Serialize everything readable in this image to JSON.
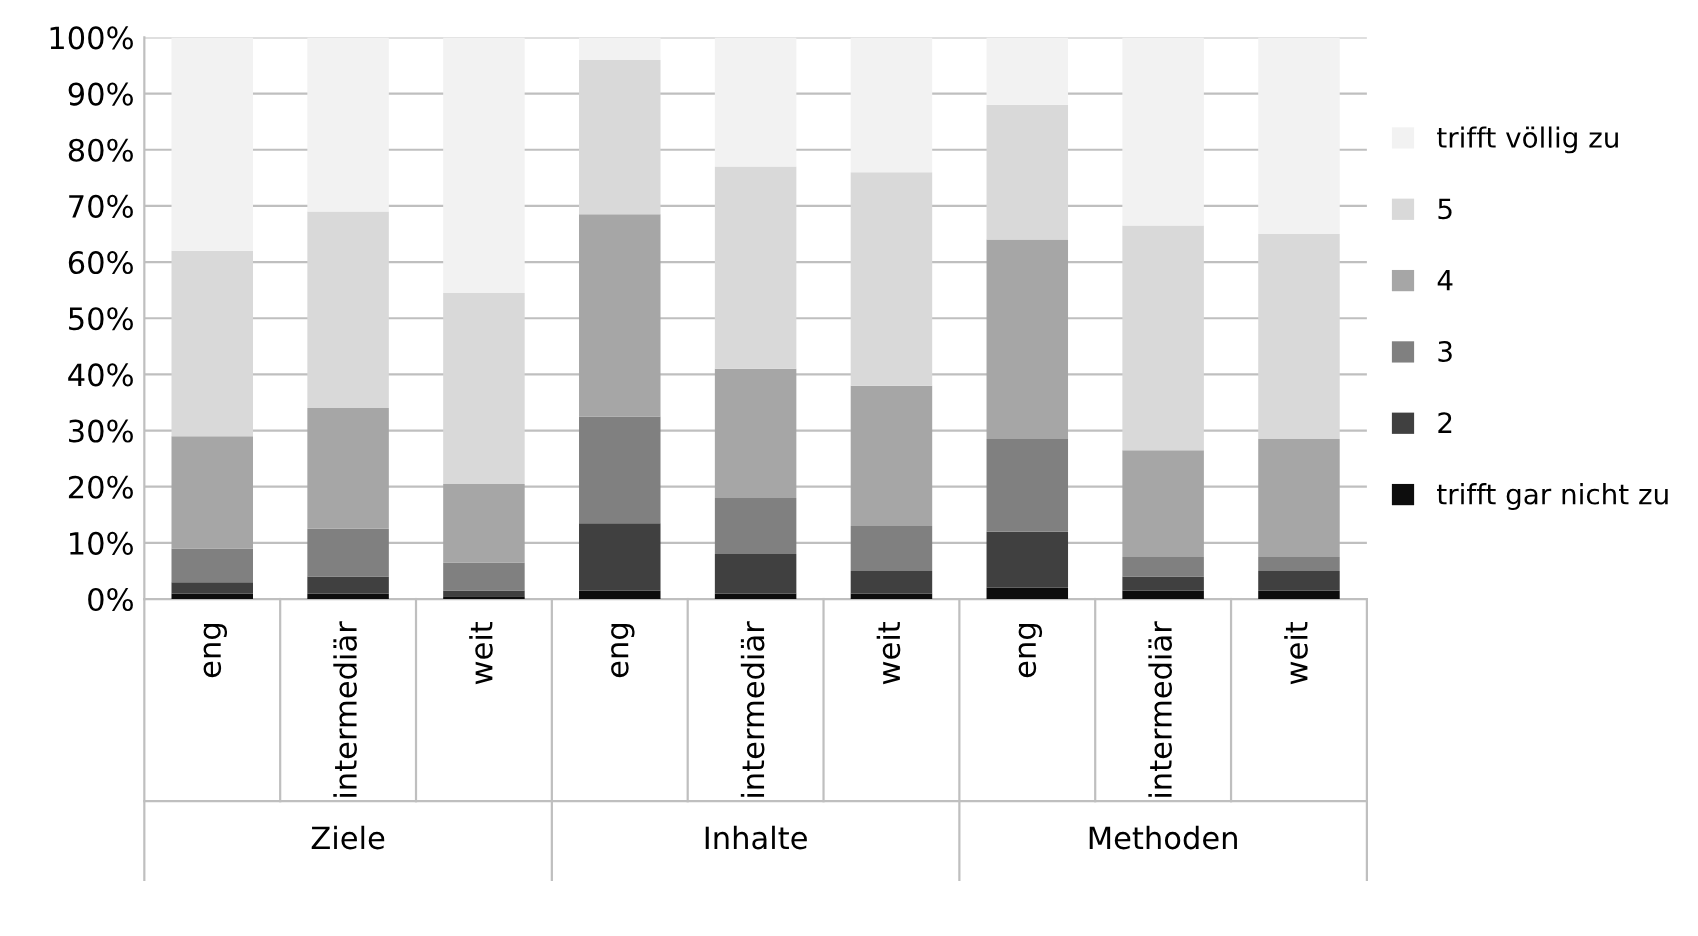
{
  "chart_data": {
    "type": "bar",
    "stacked": true,
    "categories": [
      "eng",
      "intermediär",
      "weit",
      "eng",
      "intermediär",
      "weit",
      "eng",
      "intermediär",
      "weit"
    ],
    "annotations": [
      "Ziele",
      "Inhalte",
      "Methoden"
    ],
    "series": [
      {
        "name": "trifft gar nicht zu",
        "color": "#0d0d0d",
        "values": [
          1,
          1,
          0.5,
          1.5,
          1,
          1,
          2,
          1.5,
          1.5
        ]
      },
      {
        "name": "2",
        "color": "#404040",
        "values": [
          2,
          3,
          1,
          12,
          7,
          4,
          10,
          2.5,
          3.5
        ]
      },
      {
        "name": "3",
        "color": "#808080",
        "values": [
          6,
          8.5,
          5,
          19,
          10,
          8,
          16.5,
          3.5,
          2.5
        ]
      },
      {
        "name": "4",
        "color": "#a6a6a6",
        "values": [
          20,
          21.5,
          14,
          36,
          23,
          25,
          35.5,
          19,
          21
        ]
      },
      {
        "name": "5",
        "color": "#d9d9d9",
        "values": [
          33,
          35,
          34,
          27.5,
          36,
          38,
          24,
          40,
          36.5
        ]
      },
      {
        "name": "trifft völlig zu",
        "color": "#f2f2f2",
        "values": [
          38,
          31,
          45.5,
          4,
          23,
          24,
          12,
          33.5,
          35
        ]
      }
    ],
    "ylim": [
      0,
      100
    ],
    "yticks": [
      {
        "value": 0,
        "label": "0%"
      },
      {
        "value": 10,
        "label": "10%"
      },
      {
        "value": 20,
        "label": "20%"
      },
      {
        "value": 30,
        "label": "30%"
      },
      {
        "value": 40,
        "label": "40%"
      },
      {
        "value": 50,
        "label": "50%"
      },
      {
        "value": 60,
        "label": "60%"
      },
      {
        "value": 70,
        "label": "70%"
      },
      {
        "value": 80,
        "label": "80%"
      },
      {
        "value": 90,
        "label": "90%"
      },
      {
        "value": 100,
        "label": "100%"
      }
    ],
    "grid": "y",
    "legend": "right"
  }
}
